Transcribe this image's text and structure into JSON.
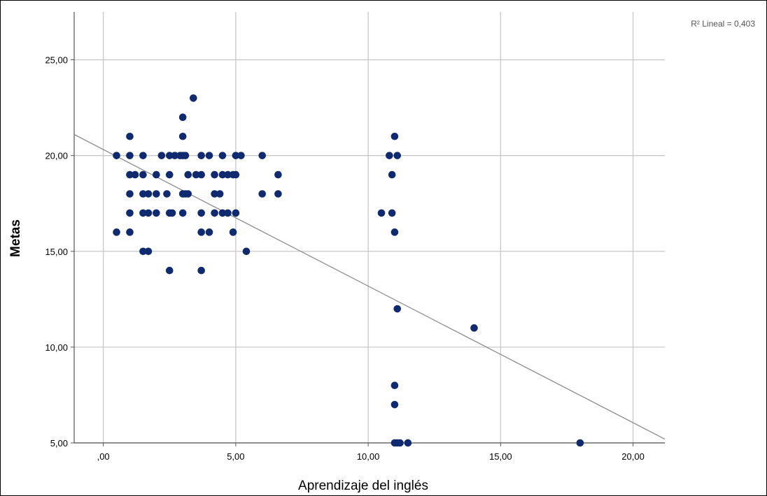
{
  "chart_data": {
    "type": "scatter",
    "title": "",
    "xlabel": "Aprendizaje del inglés",
    "ylabel": "Metas",
    "xlim": [
      -1.1,
      21.2
    ],
    "ylim": [
      5,
      27.5
    ],
    "x_ticks": [
      {
        "value": 0,
        "label": ",00"
      },
      {
        "value": 5,
        "label": "5,00"
      },
      {
        "value": 10,
        "label": "10,00"
      },
      {
        "value": 15,
        "label": "15,00"
      },
      {
        "value": 20,
        "label": "20,00"
      }
    ],
    "y_ticks": [
      {
        "value": 5,
        "label": "5,00"
      },
      {
        "value": 10,
        "label": "10,00"
      },
      {
        "value": 15,
        "label": "15,00"
      },
      {
        "value": 20,
        "label": "20,00"
      },
      {
        "value": 25,
        "label": "25,00"
      }
    ],
    "grid": true,
    "annotation": "R² Lineal = 0,403",
    "fit_line": {
      "x": [
        -1.1,
        21.2
      ],
      "y": [
        21.1,
        5.2
      ]
    },
    "point_color": "#0f2a6e",
    "line_color": "#8c8c8c",
    "grid_color": "#c8c8c8",
    "points": [
      [
        0.5,
        20
      ],
      [
        0.5,
        16
      ],
      [
        1,
        21
      ],
      [
        1,
        20
      ],
      [
        1,
        19
      ],
      [
        1,
        18
      ],
      [
        1,
        17
      ],
      [
        1,
        16
      ],
      [
        1.2,
        19
      ],
      [
        1.5,
        20
      ],
      [
        1.5,
        19
      ],
      [
        1.5,
        18
      ],
      [
        1.5,
        17
      ],
      [
        1.5,
        15
      ],
      [
        1.7,
        18
      ],
      [
        1.7,
        17
      ],
      [
        1.7,
        15
      ],
      [
        2,
        19
      ],
      [
        2,
        18
      ],
      [
        2,
        17
      ],
      [
        2.2,
        20
      ],
      [
        2.4,
        18
      ],
      [
        2.5,
        20
      ],
      [
        2.5,
        19
      ],
      [
        2.5,
        17
      ],
      [
        2.5,
        14
      ],
      [
        2.6,
        17
      ],
      [
        2.7,
        20
      ],
      [
        2.9,
        20
      ],
      [
        3,
        22
      ],
      [
        3,
        21
      ],
      [
        3,
        20
      ],
      [
        3,
        18
      ],
      [
        3,
        17
      ],
      [
        3.1,
        20
      ],
      [
        3.1,
        18
      ],
      [
        3.2,
        18
      ],
      [
        3.2,
        19
      ],
      [
        3.4,
        23
      ],
      [
        3.5,
        19
      ],
      [
        3.7,
        20
      ],
      [
        3.7,
        19
      ],
      [
        3.7,
        17
      ],
      [
        3.7,
        16
      ],
      [
        3.7,
        14
      ],
      [
        4,
        20
      ],
      [
        4,
        16
      ],
      [
        4.2,
        19
      ],
      [
        4.2,
        18
      ],
      [
        4.2,
        17
      ],
      [
        4.4,
        18
      ],
      [
        4.5,
        20
      ],
      [
        4.5,
        19
      ],
      [
        4.5,
        17
      ],
      [
        4.7,
        19
      ],
      [
        4.7,
        17
      ],
      [
        4.9,
        19
      ],
      [
        4.9,
        16
      ],
      [
        5,
        20
      ],
      [
        5,
        19
      ],
      [
        5,
        17
      ],
      [
        5.2,
        20
      ],
      [
        5.4,
        15
      ],
      [
        6,
        20
      ],
      [
        6,
        18
      ],
      [
        6.6,
        19
      ],
      [
        6.6,
        18
      ],
      [
        10.5,
        17
      ],
      [
        10.8,
        20
      ],
      [
        10.9,
        19
      ],
      [
        10.9,
        17
      ],
      [
        11,
        21
      ],
      [
        11,
        16
      ],
      [
        11,
        8
      ],
      [
        11,
        7
      ],
      [
        11.1,
        20
      ],
      [
        11.1,
        12
      ],
      [
        11,
        5
      ],
      [
        11.1,
        5
      ],
      [
        11.2,
        5
      ],
      [
        11.5,
        5
      ],
      [
        14,
        11
      ],
      [
        18,
        5
      ]
    ]
  }
}
